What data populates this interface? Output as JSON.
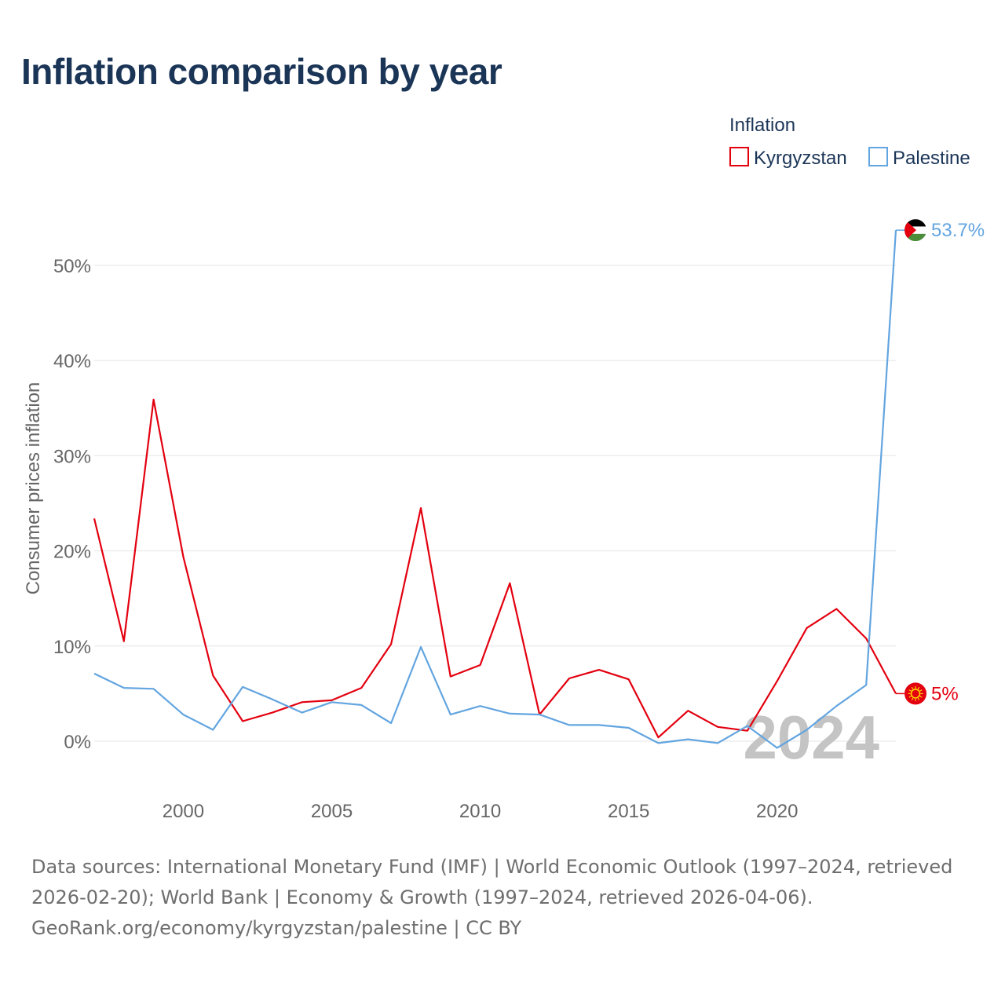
{
  "title": "Inflation comparison by year",
  "legend": {
    "title": "Inflation",
    "items": [
      {
        "name": "Kyrgyzstan",
        "color": "#e3000f"
      },
      {
        "name": "Palestine",
        "color": "#63a5e0"
      }
    ]
  },
  "chart_data": {
    "type": "line",
    "title": "Inflation comparison by year",
    "ylabel": "Consumer prices inflation",
    "xlabel": "",
    "xlim": [
      1997,
      2024
    ],
    "ylim": [
      -5,
      55
    ],
    "x_ticks": [
      2000,
      2005,
      2010,
      2015,
      2020
    ],
    "y_ticks": [
      0,
      10,
      20,
      30,
      40,
      50
    ],
    "y_tick_labels": [
      "0%",
      "10%",
      "20%",
      "30%",
      "40%",
      "50%"
    ],
    "grid": true,
    "watermark": "2024",
    "x": [
      1997,
      1998,
      1999,
      2000,
      2001,
      2002,
      2003,
      2004,
      2005,
      2006,
      2007,
      2008,
      2009,
      2010,
      2011,
      2012,
      2013,
      2014,
      2015,
      2016,
      2017,
      2018,
      2019,
      2020,
      2021,
      2022,
      2023,
      2024
    ],
    "series": [
      {
        "name": "Kyrgyzstan",
        "color": "#e3000f",
        "values": [
          23.4,
          10.5,
          35.9,
          19.4,
          6.9,
          2.1,
          3.0,
          4.1,
          4.3,
          5.6,
          10.2,
          24.5,
          6.8,
          8.0,
          16.6,
          2.8,
          6.6,
          7.5,
          6.5,
          0.4,
          3.2,
          1.5,
          1.1,
          6.3,
          11.9,
          13.9,
          10.8,
          5.0
        ],
        "end_label": "5%"
      },
      {
        "name": "Palestine",
        "color": "#63a5e0",
        "values": [
          7.1,
          5.6,
          5.5,
          2.8,
          1.2,
          5.7,
          4.4,
          3.0,
          4.1,
          3.8,
          1.9,
          9.9,
          2.8,
          3.7,
          2.9,
          2.8,
          1.7,
          1.7,
          1.4,
          -0.2,
          0.2,
          -0.2,
          1.6,
          -0.7,
          1.2,
          3.7,
          5.9,
          53.7
        ],
        "end_label": "53.7%"
      }
    ]
  },
  "footer": {
    "sources": "Data sources: International Monetary Fund (IMF) | World Economic Outlook (1997–2024, retrieved 2026-02-20); World Bank | Economy & Growth (1997–2024, retrieved 2026-04-06).",
    "credit": "GeoRank.org/economy/kyrgyzstan/palestine | CC BY"
  }
}
